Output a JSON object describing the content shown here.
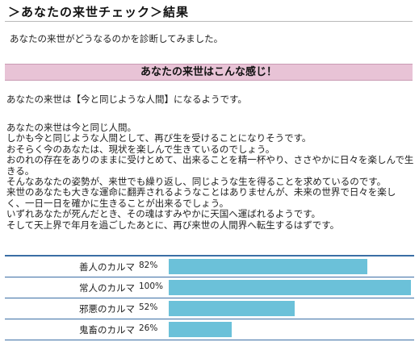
{
  "header": {
    "title": "＞あなたの来世チェック＞結果",
    "intro": "あなたの来世がどうなるのかを診断してみました。"
  },
  "banner": {
    "text": "あなたの来世はこんな感じ！"
  },
  "summary": "あなたの来世は【今と同じような人間】になるようです。",
  "paragraph_lines": [
    "あなたの来世は今と同じ人間。",
    "しかも今と同じような人間として、再び生を受けることになりそうです。",
    "おそらく今のあなたは、現状を楽しんで生きているのでしょう。",
    "おのれの存在をありのままに受けとめて、出来ることを精一杯やり、ささやかに日々を楽しんで生きる。",
    "そんなあなたの姿勢が、来世でも繰り返し、同じような生を得ることを求めているのです。",
    "来世のあなたも大きな運命に翻弄されるようなことはありませんが、未来の世界で日々を楽しく、一日一日を確かに生きることが出来るでしょう。",
    "いずれあなたが死んだとき、その魂はすみやかに天国へ運ばれるようです。",
    "そして天上界で年月を過ごしたあとに、再び来世の人間界へ転生するはずです。"
  ],
  "karma_table": {
    "bar_color": "#6bc1d9",
    "rows": [
      {
        "label": "善人のカルマ",
        "percent_text": "82%",
        "value": 82
      },
      {
        "label": "常人のカルマ",
        "percent_text": "100%",
        "value": 100
      },
      {
        "label": "邪悪のカルマ",
        "percent_text": "52%",
        "value": 52
      },
      {
        "label": "鬼畜のカルマ",
        "percent_text": "26%",
        "value": 26
      }
    ]
  }
}
